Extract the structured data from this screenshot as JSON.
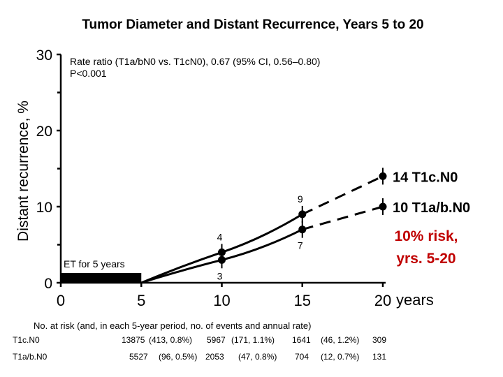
{
  "chart_data": {
    "type": "line",
    "title": "Tumor Diameter and Distant Recurrence, Years 5 to 20",
    "ylabel": "Distant recurrence, %",
    "xlabel": "years",
    "ylim": [
      0,
      30
    ],
    "xlim": [
      0,
      20
    ],
    "x_ticks": [
      "0",
      "5",
      "10",
      "15",
      "20"
    ],
    "y_ticks": [
      "0",
      "10",
      "20",
      "30"
    ],
    "annotation_lines": [
      "Rate ratio (T1a/bN0 vs. T1cN0), 0.67 (95% CI, 0.56–0.80)",
      "P<0.001"
    ],
    "et_label": "ET for 5 years",
    "series": [
      {
        "name": "T1cN0",
        "end_label": "14 T1c.N0",
        "color": "#000000",
        "x": [
          5,
          10,
          15,
          20
        ],
        "y": [
          0,
          4,
          9,
          14
        ],
        "point_labels": [
          "",
          "4",
          "9",
          ""
        ]
      },
      {
        "name": "T1a/bN0",
        "end_label": "10 T1a/b.N0",
        "color": "#000000",
        "x": [
          5,
          10,
          15,
          20
        ],
        "y": [
          0,
          3,
          7,
          10
        ],
        "point_labels": [
          "",
          "3",
          "7",
          ""
        ]
      }
    ],
    "risk_label": [
      "10% risk,",
      "yrs. 5-20"
    ],
    "risk_color": "#c00000",
    "risk_table": {
      "heading": "No. at risk (and, in each 5-year period, no. of events and annual rate)",
      "rows": [
        {
          "label": "T1c.N0",
          "cells": [
            "13875",
            "(413, 0.8%)",
            "5967",
            "(171, 1.1%)",
            "1641",
            "(46, 1.2%)",
            "309"
          ]
        },
        {
          "label": "T1a/b.N0",
          "cells": [
            "5527",
            "(96, 0.5%)",
            "2053",
            "(47, 0.8%)",
            "704",
            "(12, 0.7%)",
            "131"
          ]
        }
      ]
    }
  }
}
